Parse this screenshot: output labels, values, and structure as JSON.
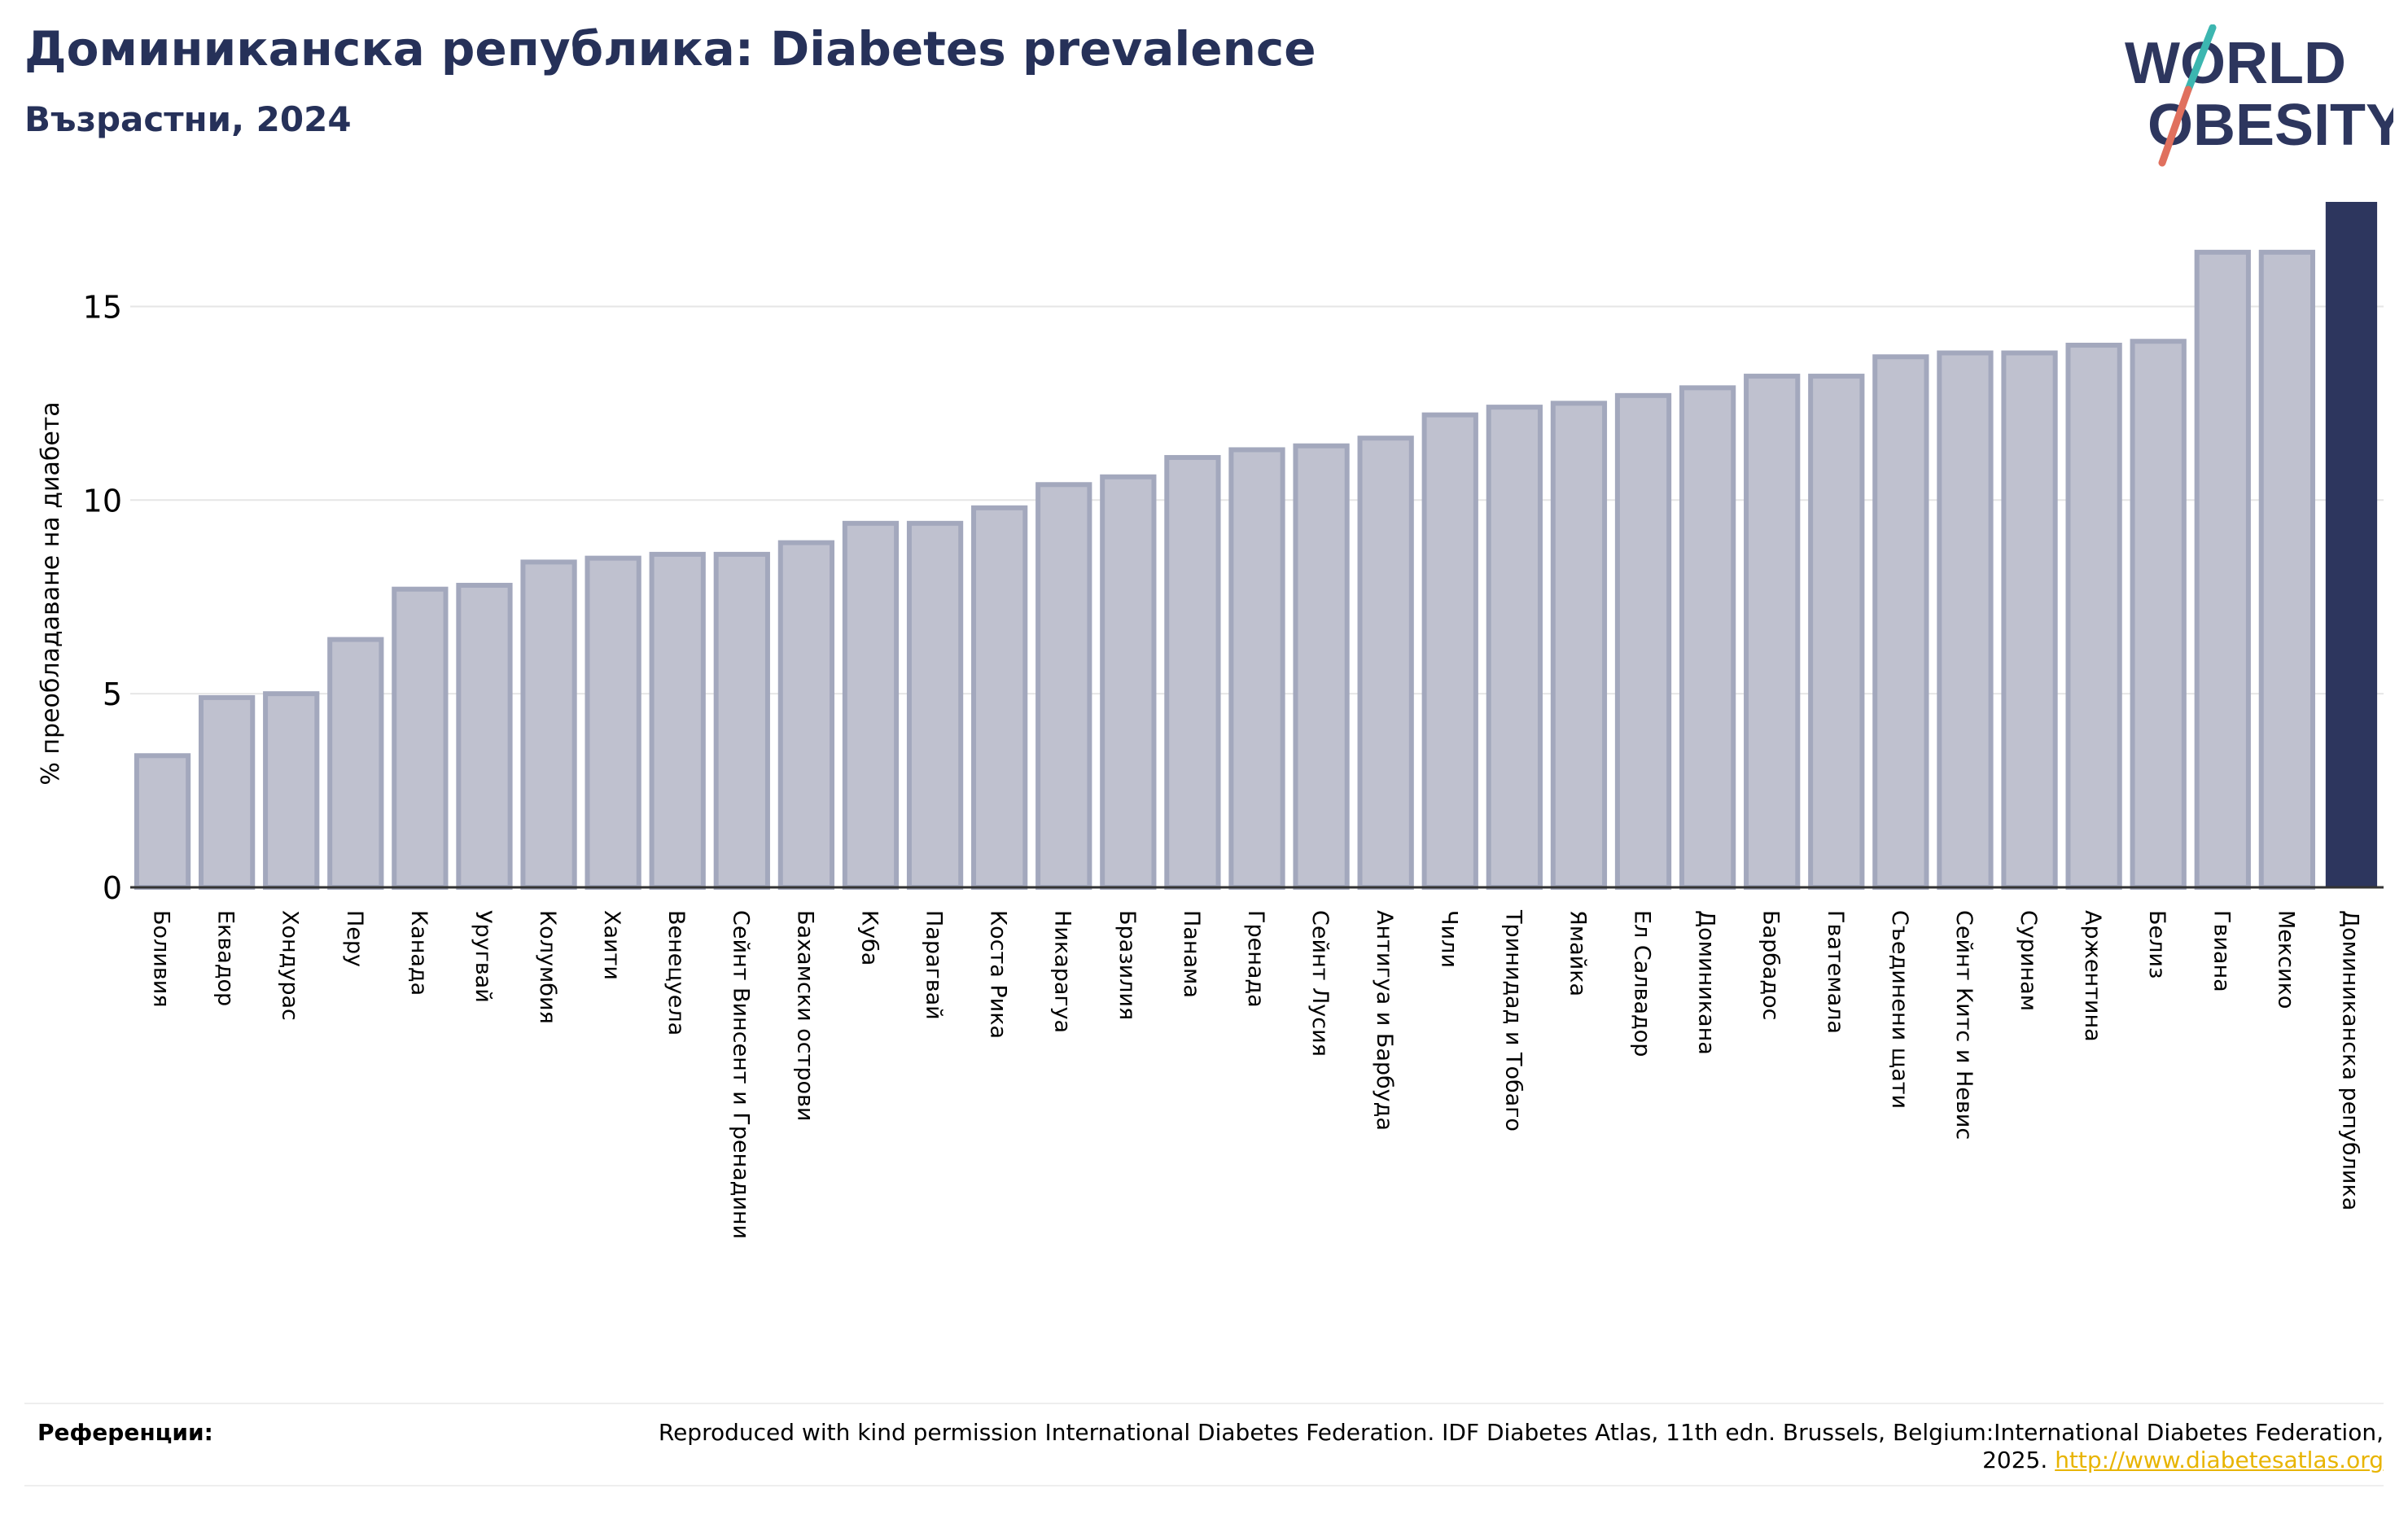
{
  "header": {
    "title": "Доминиканска република: Diabetes prevalence",
    "subtitle": "Възрастни, 2024"
  },
  "logo": {
    "line1": "WORLD",
    "line2": "OBESITY"
  },
  "references": {
    "label": "Референции:",
    "text": "Reproduced with kind permission International Diabetes Federation. IDF Diabetes Atlas, 11th edn. Brussels, Belgium:International Diabetes Federation, 2025.",
    "link": "http://www.diabetesatlas.org"
  },
  "colors": {
    "bar": "#bfc1cf",
    "bar_edge": "#a3a8bd",
    "highlight": "#2d365e",
    "title": "#263159"
  },
  "chart_data": {
    "type": "bar",
    "ylabel": "% преобладаване на диабета",
    "ylim": [
      0,
      17.7
    ],
    "yticks": [
      0,
      5,
      10,
      15
    ],
    "grid": true,
    "highlight": "Доминиканска република",
    "categories": [
      "Боливия",
      "Еквадор",
      "Хондурас",
      "Перу",
      "Канада",
      "Уругвай",
      "Колумбия",
      "Хаити",
      "Венецуела",
      "Сейнт Винсент и Гренадини",
      "Бахамски острови",
      "Куба",
      "Парагвай",
      "Коста Рика",
      "Никарагуа",
      "Бразилия",
      "Панама",
      "Гренада",
      "Сейнт Лусия",
      "Антигуа и Барбуда",
      "Чили",
      "Тринидад и Тобаго",
      "Ямайка",
      "Ел Салвадор",
      "Доминикана",
      "Барбадос",
      "Гватемала",
      "Съединени щати",
      "Сейнт Китс и Невис",
      "Суринам",
      "Аржентина",
      "Белиз",
      "Гвиана",
      "Мексико",
      "Доминиканска република"
    ],
    "values": [
      3.4,
      4.9,
      5.0,
      6.4,
      7.7,
      7.8,
      8.4,
      8.5,
      8.6,
      8.6,
      8.9,
      9.4,
      9.4,
      9.8,
      10.4,
      10.6,
      11.1,
      11.3,
      11.4,
      11.6,
      12.2,
      12.4,
      12.5,
      12.7,
      12.9,
      13.2,
      13.2,
      13.7,
      13.8,
      13.8,
      14.0,
      14.1,
      16.4,
      16.4,
      17.7
    ]
  }
}
